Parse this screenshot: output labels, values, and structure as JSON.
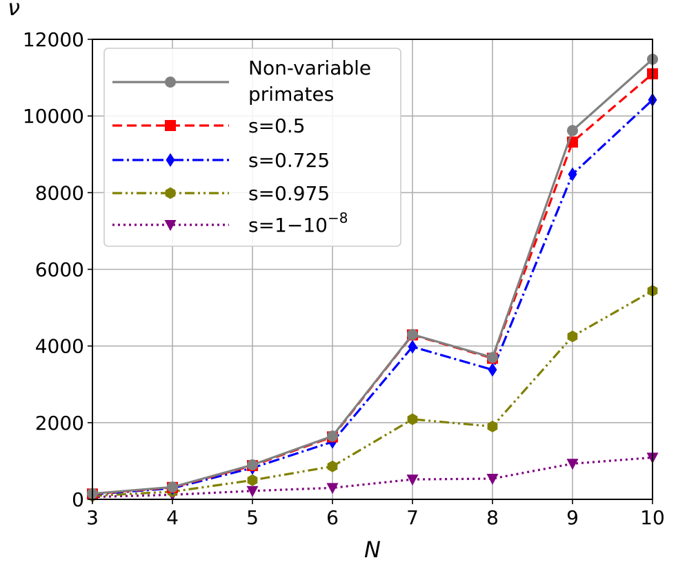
{
  "chart_data": {
    "type": "line",
    "xlabel": "N",
    "ylabel": "ν",
    "xlim": [
      3,
      10
    ],
    "ylim": [
      0,
      12000
    ],
    "x": [
      3,
      4,
      5,
      6,
      7,
      8,
      9,
      10
    ],
    "x_ticks": [
      "3",
      "4",
      "5",
      "6",
      "7",
      "8",
      "9",
      "10"
    ],
    "y_ticks": [
      "0",
      "2000",
      "4000",
      "6000",
      "8000",
      "10000",
      "12000"
    ],
    "grid": true,
    "legend_position": "upper-left",
    "series": [
      {
        "name": "Non-variable primates",
        "legend_lines": [
          "Non-variable",
          "primates"
        ],
        "color": "#808080",
        "line_style": "solid",
        "marker": "circle",
        "values": [
          150,
          320,
          900,
          1650,
          4300,
          3700,
          9620,
          11480
        ]
      },
      {
        "name": "s=0.5",
        "legend_lines": [
          "s=0.5"
        ],
        "color": "#ff0000",
        "line_style": "dashed",
        "marker": "square",
        "values": [
          140,
          310,
          880,
          1630,
          4290,
          3680,
          9320,
          11100
        ]
      },
      {
        "name": "s=0.725",
        "legend_lines": [
          "s=0.725"
        ],
        "color": "#0000ff",
        "line_style": "dashdot",
        "marker": "diamond",
        "values": [
          130,
          290,
          820,
          1500,
          3980,
          3380,
          8480,
          10420
        ]
      },
      {
        "name": "s=0.975",
        "legend_lines": [
          "s=0.975"
        ],
        "color": "#808000",
        "line_style": "dashdotdot",
        "marker": "hexagon",
        "values": [
          90,
          200,
          500,
          860,
          2090,
          1900,
          4250,
          5440
        ]
      },
      {
        "name": "s=1−10^−8",
        "legend_lines": [
          "s=1−10"
        ],
        "legend_superscript": "−8",
        "color": "#800080",
        "line_style": "dotted",
        "marker": "triangle-down",
        "values": [
          60,
          120,
          220,
          300,
          520,
          540,
          930,
          1090
        ]
      }
    ]
  }
}
